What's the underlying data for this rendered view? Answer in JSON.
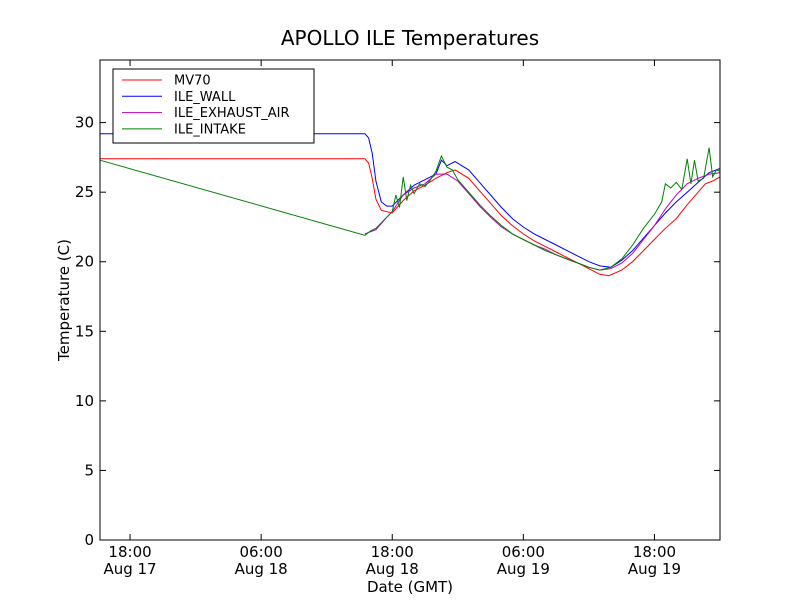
{
  "chart_data": {
    "type": "line",
    "title": "APOLLO ILE Temperatures",
    "xlabel": "Date (GMT)",
    "ylabel": "Temperature (C)",
    "xlim": [
      "2012-08-17 15:15",
      "2012-08-20 00:00"
    ],
    "ylim": [
      0,
      34.5
    ],
    "grid": false,
    "legend_position": "top-left",
    "x_ticks": [
      {
        "time": "2012-08-17 18:00",
        "line1": "18:00",
        "line2": "Aug 17"
      },
      {
        "time": "2012-08-18 06:00",
        "line1": "06:00",
        "line2": "Aug 18"
      },
      {
        "time": "2012-08-18 18:00",
        "line1": "18:00",
        "line2": "Aug 18"
      },
      {
        "time": "2012-08-19 06:00",
        "line1": "06:00",
        "line2": "Aug 19"
      },
      {
        "time": "2012-08-19 18:00",
        "line1": "18:00",
        "line2": "Aug 19"
      }
    ],
    "y_ticks": [
      0,
      5,
      10,
      15,
      20,
      25,
      30
    ],
    "series": [
      {
        "name": "MV70",
        "color": "#ff0000",
        "points": [
          [
            "2012-08-17 15:15",
            27.4
          ],
          [
            "2012-08-18 15:30",
            27.4
          ],
          [
            "2012-08-18 15:50",
            27.1
          ],
          [
            "2012-08-18 16:10",
            26.0
          ],
          [
            "2012-08-18 16:30",
            24.5
          ],
          [
            "2012-08-18 17:00",
            23.7
          ],
          [
            "2012-08-18 18:00",
            23.5
          ],
          [
            "2012-08-18 19:00",
            24.4
          ],
          [
            "2012-08-18 20:00",
            25.1
          ],
          [
            "2012-08-18 21:00",
            25.5
          ],
          [
            "2012-08-18 22:00",
            26.0
          ],
          [
            "2012-08-18 23:00",
            26.4
          ],
          [
            "2012-08-18 23:45",
            26.6
          ],
          [
            "2012-08-19 01:00",
            26.0
          ],
          [
            "2012-08-19 02:00",
            25.1
          ],
          [
            "2012-08-19 03:00",
            24.2
          ],
          [
            "2012-08-19 04:00",
            23.3
          ],
          [
            "2012-08-19 05:00",
            22.6
          ],
          [
            "2012-08-19 06:00",
            22.0
          ],
          [
            "2012-08-19 07:00",
            21.5
          ],
          [
            "2012-08-19 08:00",
            21.1
          ],
          [
            "2012-08-19 09:00",
            20.7
          ],
          [
            "2012-08-19 10:00",
            20.3
          ],
          [
            "2012-08-19 11:00",
            19.9
          ],
          [
            "2012-08-19 12:00",
            19.5
          ],
          [
            "2012-08-19 13:00",
            19.1
          ],
          [
            "2012-08-19 13:50",
            19.0
          ],
          [
            "2012-08-19 15:00",
            19.4
          ],
          [
            "2012-08-19 16:00",
            20.0
          ],
          [
            "2012-08-19 17:00",
            20.8
          ],
          [
            "2012-08-19 18:00",
            21.6
          ],
          [
            "2012-08-19 19:00",
            22.4
          ],
          [
            "2012-08-19 20:00",
            23.1
          ],
          [
            "2012-08-19 21:00",
            24.1
          ],
          [
            "2012-08-19 22:00",
            25.0
          ],
          [
            "2012-08-19 22:40",
            25.6
          ],
          [
            "2012-08-19 23:20",
            25.8
          ],
          [
            "2012-08-20 00:00",
            26.1
          ]
        ]
      },
      {
        "name": "ILE_WALL",
        "color": "#0000ff",
        "points": [
          [
            "2012-08-17 15:15",
            29.2
          ],
          [
            "2012-08-18 15:30",
            29.2
          ],
          [
            "2012-08-18 15:50",
            28.9
          ],
          [
            "2012-08-18 16:10",
            27.8
          ],
          [
            "2012-08-18 16:30",
            25.8
          ],
          [
            "2012-08-18 17:00",
            24.3
          ],
          [
            "2012-08-18 17:30",
            24.0
          ],
          [
            "2012-08-18 18:00",
            24.0
          ],
          [
            "2012-08-18 19:00",
            24.8
          ],
          [
            "2012-08-18 20:00",
            25.5
          ],
          [
            "2012-08-18 21:00",
            25.9
          ],
          [
            "2012-08-18 22:00",
            26.3
          ],
          [
            "2012-08-18 22:30",
            27.3
          ],
          [
            "2012-08-18 23:00",
            26.9
          ],
          [
            "2012-08-18 23:45",
            27.2
          ],
          [
            "2012-08-19 01:00",
            26.6
          ],
          [
            "2012-08-19 02:00",
            25.7
          ],
          [
            "2012-08-19 03:00",
            24.8
          ],
          [
            "2012-08-19 04:00",
            23.9
          ],
          [
            "2012-08-19 05:00",
            23.1
          ],
          [
            "2012-08-19 06:00",
            22.5
          ],
          [
            "2012-08-19 07:00",
            22.0
          ],
          [
            "2012-08-19 08:00",
            21.6
          ],
          [
            "2012-08-19 09:00",
            21.2
          ],
          [
            "2012-08-19 10:00",
            20.8
          ],
          [
            "2012-08-19 11:00",
            20.4
          ],
          [
            "2012-08-19 12:00",
            20.0
          ],
          [
            "2012-08-19 13:00",
            19.7
          ],
          [
            "2012-08-19 14:00",
            19.6
          ],
          [
            "2012-08-19 15:00",
            20.1
          ],
          [
            "2012-08-19 16:00",
            20.8
          ],
          [
            "2012-08-19 17:00",
            21.7
          ],
          [
            "2012-08-19 18:00",
            22.6
          ],
          [
            "2012-08-19 19:00",
            23.5
          ],
          [
            "2012-08-19 20:00",
            24.3
          ],
          [
            "2012-08-19 21:00",
            25.0
          ],
          [
            "2012-08-19 22:00",
            25.7
          ],
          [
            "2012-08-19 23:00",
            26.4
          ],
          [
            "2012-08-20 00:00",
            26.7
          ]
        ]
      },
      {
        "name": "ILE_EXHAUST_AIR",
        "color": "#bf00bf",
        "points": [
          [
            "2012-08-18 15:30",
            22.0
          ],
          [
            "2012-08-18 16:30",
            22.3
          ],
          [
            "2012-08-18 17:30",
            23.2
          ],
          [
            "2012-08-18 18:00",
            23.6
          ],
          [
            "2012-08-18 19:00",
            24.8
          ],
          [
            "2012-08-18 20:00",
            25.3
          ],
          [
            "2012-08-18 21:00",
            25.6
          ],
          [
            "2012-08-18 22:00",
            26.3
          ],
          [
            "2012-08-18 23:00",
            26.3
          ],
          [
            "2012-08-19 00:00",
            25.8
          ],
          [
            "2012-08-19 01:00",
            24.9
          ],
          [
            "2012-08-19 02:00",
            24.0
          ],
          [
            "2012-08-19 03:00",
            23.2
          ],
          [
            "2012-08-19 04:00",
            22.5
          ],
          [
            "2012-08-19 05:00",
            22.0
          ],
          [
            "2012-08-19 06:00",
            21.6
          ],
          [
            "2012-08-19 07:00",
            21.2
          ],
          [
            "2012-08-19 08:00",
            20.9
          ],
          [
            "2012-08-19 09:00",
            20.5
          ],
          [
            "2012-08-19 10:00",
            20.2
          ],
          [
            "2012-08-19 11:00",
            19.9
          ],
          [
            "2012-08-19 12:00",
            19.6
          ],
          [
            "2012-08-19 13:00",
            19.4
          ],
          [
            "2012-08-19 14:00",
            19.5
          ],
          [
            "2012-08-19 15:00",
            19.9
          ],
          [
            "2012-08-19 16:00",
            20.6
          ],
          [
            "2012-08-19 17:00",
            21.6
          ],
          [
            "2012-08-19 18:00",
            22.6
          ],
          [
            "2012-08-19 19:00",
            23.8
          ],
          [
            "2012-08-19 20:00",
            24.8
          ],
          [
            "2012-08-19 21:00",
            25.6
          ],
          [
            "2012-08-19 22:00",
            26.0
          ],
          [
            "2012-08-19 23:00",
            26.3
          ],
          [
            "2012-08-20 00:00",
            26.4
          ]
        ]
      },
      {
        "name": "ILE_INTAKE",
        "color": "#008000",
        "points": [
          [
            "2012-08-17 15:15",
            27.3
          ],
          [
            "2012-08-18 15:30",
            21.9
          ],
          [
            "2012-08-18 16:00",
            22.2
          ],
          [
            "2012-08-18 16:30",
            22.4
          ],
          [
            "2012-08-18 17:00",
            22.8
          ],
          [
            "2012-08-18 17:30",
            23.2
          ],
          [
            "2012-08-18 18:00",
            23.6
          ],
          [
            "2012-08-18 18:20",
            24.8
          ],
          [
            "2012-08-18 18:40",
            23.9
          ],
          [
            "2012-08-18 19:00",
            26.1
          ],
          [
            "2012-08-18 19:20",
            24.4
          ],
          [
            "2012-08-18 19:40",
            25.5
          ],
          [
            "2012-08-18 20:00",
            24.9
          ],
          [
            "2012-08-18 20:30",
            25.6
          ],
          [
            "2012-08-18 21:00",
            25.4
          ],
          [
            "2012-08-18 21:30",
            25.9
          ],
          [
            "2012-08-18 22:00",
            26.5
          ],
          [
            "2012-08-18 22:30",
            27.6
          ],
          [
            "2012-08-18 23:00",
            26.8
          ],
          [
            "2012-08-18 23:30",
            26.6
          ],
          [
            "2012-08-19 00:00",
            25.9
          ],
          [
            "2012-08-19 01:00",
            25.0
          ],
          [
            "2012-08-19 02:00",
            24.1
          ],
          [
            "2012-08-19 03:00",
            23.3
          ],
          [
            "2012-08-19 04:00",
            22.6
          ],
          [
            "2012-08-19 05:00",
            22.0
          ],
          [
            "2012-08-19 06:00",
            21.6
          ],
          [
            "2012-08-19 07:00",
            21.2
          ],
          [
            "2012-08-19 08:00",
            20.8
          ],
          [
            "2012-08-19 09:00",
            20.5
          ],
          [
            "2012-08-19 10:00",
            20.2
          ],
          [
            "2012-08-19 11:00",
            19.9
          ],
          [
            "2012-08-19 12:00",
            19.6
          ],
          [
            "2012-08-19 13:00",
            19.4
          ],
          [
            "2012-08-19 14:00",
            19.6
          ],
          [
            "2012-08-19 15:00",
            20.2
          ],
          [
            "2012-08-19 16:00",
            21.2
          ],
          [
            "2012-08-19 17:00",
            22.4
          ],
          [
            "2012-08-19 18:00",
            23.4
          ],
          [
            "2012-08-19 18:40",
            24.3
          ],
          [
            "2012-08-19 19:00",
            25.6
          ],
          [
            "2012-08-19 19:30",
            25.3
          ],
          [
            "2012-08-19 20:00",
            25.7
          ],
          [
            "2012-08-19 20:30",
            25.2
          ],
          [
            "2012-08-19 21:00",
            27.4
          ],
          [
            "2012-08-19 21:20",
            25.6
          ],
          [
            "2012-08-19 21:40",
            27.3
          ],
          [
            "2012-08-19 22:00",
            25.8
          ],
          [
            "2012-08-19 22:30",
            26.0
          ],
          [
            "2012-08-19 23:00",
            28.2
          ],
          [
            "2012-08-19 23:20",
            26.1
          ],
          [
            "2012-08-19 23:40",
            26.6
          ],
          [
            "2012-08-20 00:00",
            26.5
          ]
        ]
      }
    ]
  }
}
